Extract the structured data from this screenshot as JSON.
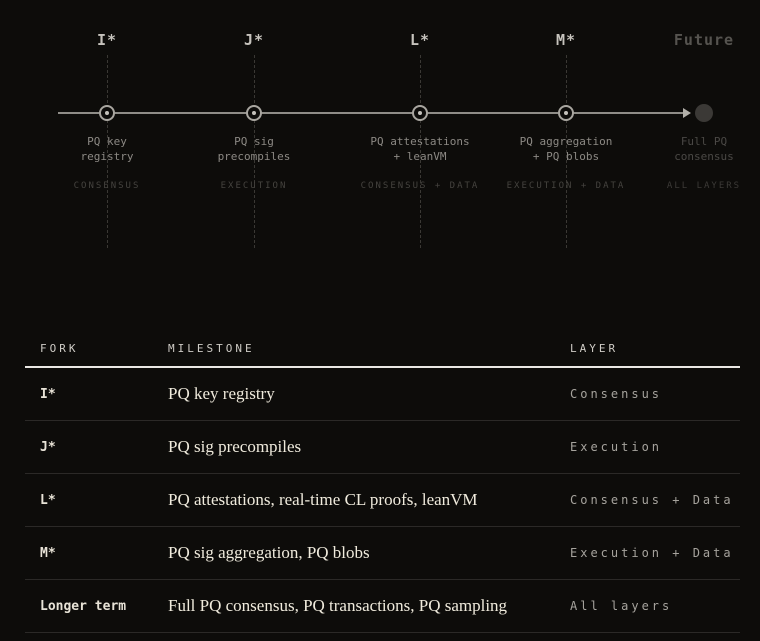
{
  "colors": {
    "background": "#0d0c0a",
    "cream_text": "#f0ebdd",
    "timeline_line": "#8f8d88",
    "muted_gray": "#8c8984",
    "dim_gray": "#45433f"
  },
  "timeline": {
    "nodes": [
      {
        "fork": "I*",
        "label_line1": "PQ key",
        "label_line2": "registry",
        "layer": "CONSENSUS"
      },
      {
        "fork": "J*",
        "label_line1": "PQ sig",
        "label_line2": "precompiles",
        "layer": "EXECUTION"
      },
      {
        "fork": "L*",
        "label_line1": "PQ attestations",
        "label_line2": "+ leanVM",
        "layer": "CONSENSUS + DATA"
      },
      {
        "fork": "M*",
        "label_line1": "PQ aggregation",
        "label_line2": "+ PQ blobs",
        "layer": "EXECUTION + DATA"
      }
    ],
    "future": {
      "fork": "Future",
      "label_line1": "Full PQ",
      "label_line2": "consensus",
      "layer": "ALL LAYERS"
    }
  },
  "table": {
    "headers": {
      "fork": "FORK",
      "milestone": "MILESTONE",
      "layer": "LAYER"
    },
    "rows": [
      {
        "fork": "I*",
        "milestone": "PQ key registry",
        "layer": "Consensus"
      },
      {
        "fork": "J*",
        "milestone": "PQ sig precompiles",
        "layer": "Execution"
      },
      {
        "fork": "L*",
        "milestone": "PQ attestations, real-time CL proofs, leanVM",
        "layer": "Consensus + Data"
      },
      {
        "fork": "M*",
        "milestone": "PQ sig aggregation, PQ blobs",
        "layer": "Execution + Data"
      },
      {
        "fork": "Longer term",
        "milestone": "Full PQ consensus, PQ transactions, PQ sampling",
        "layer": "All layers"
      }
    ]
  }
}
